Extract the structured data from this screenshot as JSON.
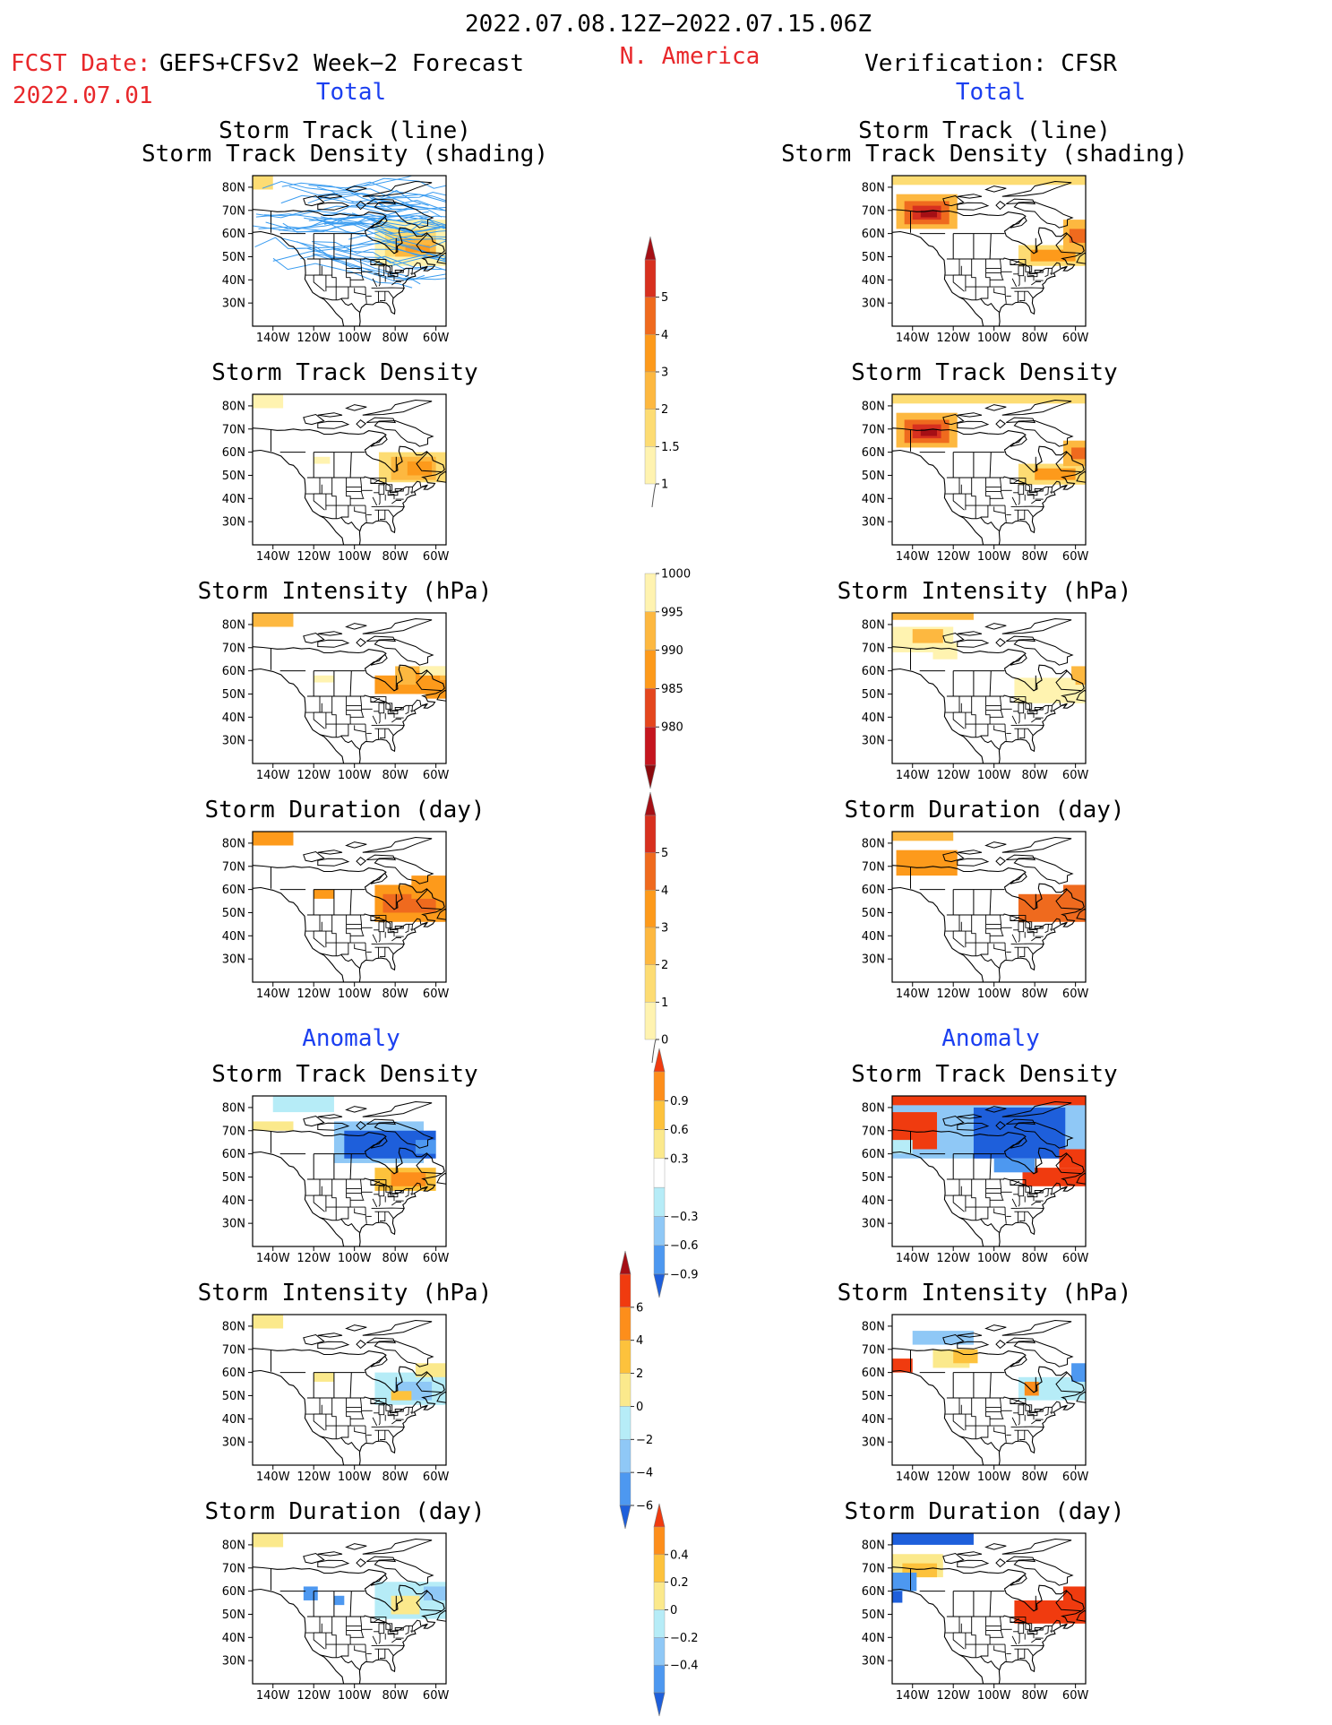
{
  "header": {
    "period": "2022.07.08.12Z−2022.07.15.06Z",
    "fcst_date_label": "FCST Date:",
    "model": "GEFS+CFSv2 Week−2 Forecast",
    "region": "N. America",
    "verification": "Verification: CFSR",
    "fcst_date": "2022.07.01"
  },
  "sections": {
    "total_left": "Total",
    "total_right": "Total",
    "anomaly_left": "Anomaly",
    "anomaly_right": "Anomaly"
  },
  "axes": {
    "lat_labels": [
      "80N",
      "70N",
      "60N",
      "50N",
      "40N",
      "30N"
    ],
    "lon_labels": [
      "140W",
      "120W",
      "100W",
      "80W",
      "60W"
    ]
  },
  "panels": {
    "track_line": [
      "Storm Track (line)",
      "Storm Track Density (shading)"
    ],
    "density": "Storm Track Density",
    "intensity": "Storm Intensity (hPa)",
    "duration": "Storm Duration (day)"
  },
  "colorbars": {
    "density_total": {
      "labels": [
        "5",
        "4",
        "3",
        "2",
        "1.5",
        "1"
      ],
      "colors": [
        "#a50f15",
        "#d7301f",
        "#ef6a1e",
        "#fd9a1b",
        "#fdb840",
        "#fddc73",
        "#fff3b0"
      ]
    },
    "intensity_total": {
      "labels": [
        "1000",
        "995",
        "990",
        "985",
        "980"
      ],
      "colors": [
        "#fff3b0",
        "#fdb840",
        "#fd9a1b",
        "#e4461e",
        "#c5161f",
        "#8c0a0e"
      ]
    },
    "duration_total": {
      "labels": [
        "5",
        "4",
        "3",
        "2",
        "1",
        "0"
      ],
      "colors": [
        "#a50f15",
        "#d7301f",
        "#ef6a1e",
        "#fd9a1b",
        "#fdb840",
        "#fddc73",
        "#fff3b0"
      ]
    },
    "density_anom": {
      "labels": [
        "0.9",
        "0.6",
        "0.3",
        "−0.3",
        "−0.6",
        "−0.9"
      ],
      "colors": [
        "#f03b0f",
        "#fd8e1b",
        "#fdc23c",
        "#fbe98c",
        "#ffffff",
        "#b6ecf7",
        "#8fc8f6",
        "#4d98f0",
        "#1e5fdb"
      ]
    },
    "intensity_anom": {
      "labels": [
        "6",
        "4",
        "2",
        "0",
        "−2",
        "−4",
        "−6"
      ],
      "colors": [
        "#a50f15",
        "#f03b0f",
        "#fd8e1b",
        "#fdc23c",
        "#fbe98c",
        "#b6ecf7",
        "#8fc8f6",
        "#4d98f0",
        "#1e5fdb"
      ]
    },
    "duration_anom": {
      "labels": [
        "0.4",
        "0.2",
        "0",
        "−0.2",
        "−0.4"
      ],
      "colors": [
        "#f03b0f",
        "#fd8e1b",
        "#fdc23c",
        "#fbe98c",
        "#b6ecf7",
        "#8fc8f6",
        "#4d98f0",
        "#1e5fdb"
      ]
    }
  }
}
